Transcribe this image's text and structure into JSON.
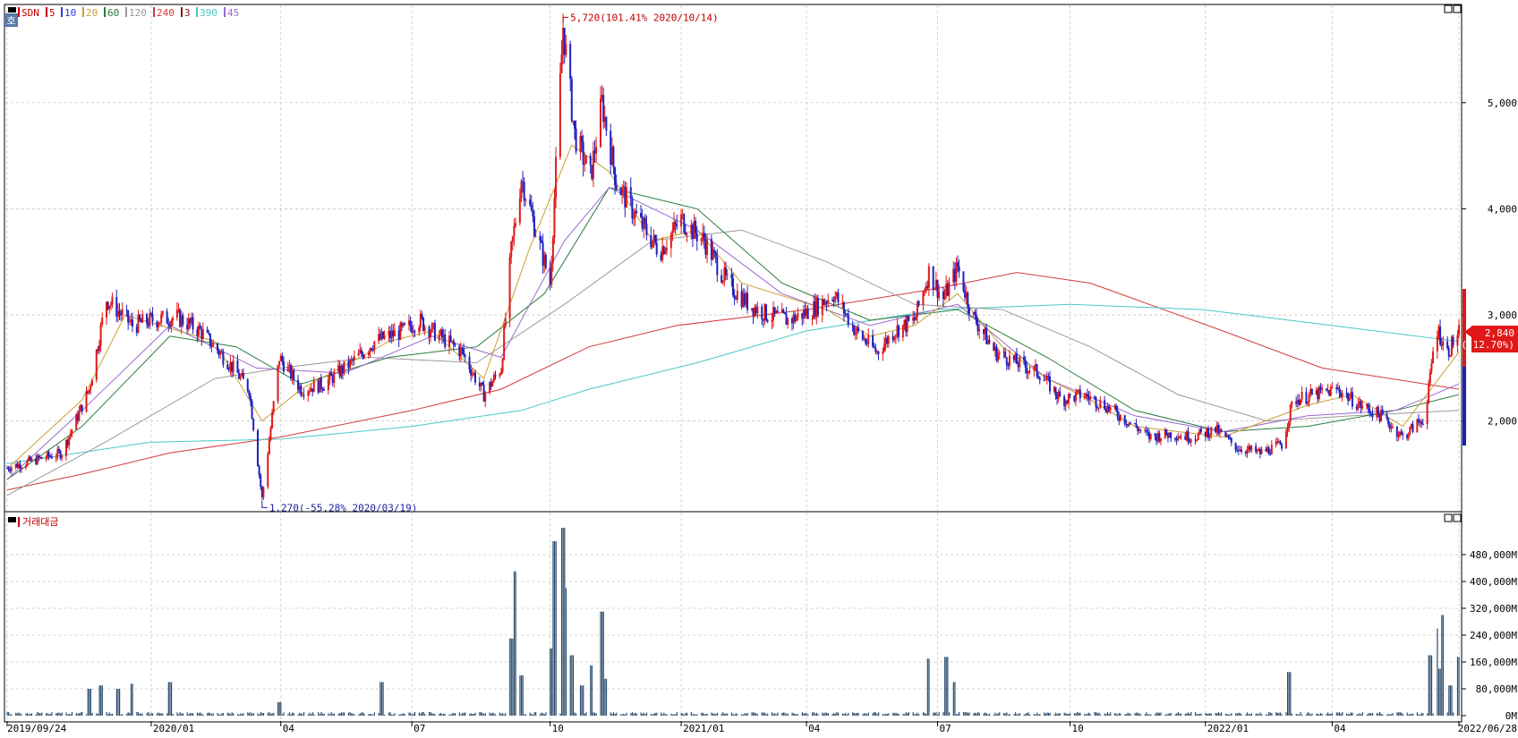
{
  "chart_data": [
    {
      "type": "candlestick",
      "panel": "price",
      "symbol": "SDN",
      "legend": [
        {
          "label": "SDN",
          "color": "#c00000"
        },
        {
          "label": "5",
          "color": "#c00000"
        },
        {
          "label": "10",
          "color": "#2a3ad0"
        },
        {
          "label": "20",
          "color": "#c8a030"
        },
        {
          "label": "60",
          "color": "#2a7a3a"
        },
        {
          "label": "120",
          "color": "#9a9a9a"
        },
        {
          "label": "240",
          "color": "#d23a3a"
        },
        {
          "label": "3",
          "color": "#8a1818"
        },
        {
          "label": "390",
          "color": "#4ac8c8"
        },
        {
          "label": "45",
          "color": "#9a6ad0"
        }
      ],
      "x_range": [
        "2019-09-24",
        "2022-06-28"
      ],
      "x_ticks": [
        {
          "date": "2019-09-24",
          "label": "2019/09/24"
        },
        {
          "date": "2020-01-02",
          "label": "2020/01"
        },
        {
          "date": "2020-04-01",
          "label": "04"
        },
        {
          "date": "2020-07-01",
          "label": "07"
        },
        {
          "date": "2020-10-05",
          "label": "10"
        },
        {
          "date": "2021-01-04",
          "label": "2021/01"
        },
        {
          "date": "2021-04-01",
          "label": "04"
        },
        {
          "date": "2021-07-01",
          "label": "07"
        },
        {
          "date": "2021-10-01",
          "label": "10"
        },
        {
          "date": "2022-01-03",
          "label": "2022/01"
        },
        {
          "date": "2022-04-01",
          "label": "04"
        },
        {
          "date": "2022-06-28",
          "label": "2022/06/28"
        }
      ],
      "ylim": [
        1180,
        5900
      ],
      "y_ticks": [
        {
          "value": 2000,
          "label": "2,000"
        },
        {
          "value": 3000,
          "label": "3,000"
        },
        {
          "value": 4000,
          "label": "4,000"
        },
        {
          "value": 5000,
          "label": "5,000"
        }
      ],
      "close_series": [
        [
          "2019-09-24",
          1560
        ],
        [
          "2019-10-10",
          1620
        ],
        [
          "2019-11-01",
          1700
        ],
        [
          "2019-11-20",
          2300
        ],
        [
          "2019-12-02",
          3150
        ],
        [
          "2019-12-20",
          2900
        ],
        [
          "2020-01-02",
          2950
        ],
        [
          "2020-01-20",
          2980
        ],
        [
          "2020-02-05",
          2850
        ],
        [
          "2020-02-25",
          2550
        ],
        [
          "2020-03-10",
          2300
        ],
        [
          "2020-03-19",
          1270
        ],
        [
          "2020-03-31",
          2600
        ],
        [
          "2020-04-15",
          2300
        ],
        [
          "2020-05-01",
          2350
        ],
        [
          "2020-05-20",
          2550
        ],
        [
          "2020-06-05",
          2750
        ],
        [
          "2020-06-25",
          2850
        ],
        [
          "2020-07-06",
          2950
        ],
        [
          "2020-07-20",
          2800
        ],
        [
          "2020-08-05",
          2650
        ],
        [
          "2020-08-20",
          2250
        ],
        [
          "2020-09-01",
          2500
        ],
        [
          "2020-09-08",
          3600
        ],
        [
          "2020-09-15",
          4300
        ],
        [
          "2020-09-25",
          3800
        ],
        [
          "2020-10-05",
          3300
        ],
        [
          "2020-10-14",
          5720
        ],
        [
          "2020-10-22",
          4700
        ],
        [
          "2020-11-02",
          4300
        ],
        [
          "2020-11-10",
          5000
        ],
        [
          "2020-11-20",
          4250
        ],
        [
          "2020-12-05",
          3900
        ],
        [
          "2020-12-20",
          3600
        ],
        [
          "2021-01-04",
          3900
        ],
        [
          "2021-01-20",
          3700
        ],
        [
          "2021-02-05",
          3300
        ],
        [
          "2021-02-20",
          3100
        ],
        [
          "2021-03-05",
          3000
        ],
        [
          "2021-03-20",
          2950
        ],
        [
          "2021-04-05",
          3050
        ],
        [
          "2021-04-20",
          3200
        ],
        [
          "2021-05-05",
          2850
        ],
        [
          "2021-05-20",
          2650
        ],
        [
          "2021-06-01",
          2850
        ],
        [
          "2021-06-15",
          2950
        ],
        [
          "2021-06-25",
          3400
        ],
        [
          "2021-07-05",
          3150
        ],
        [
          "2021-07-15",
          3450
        ],
        [
          "2021-07-25",
          3000
        ],
        [
          "2021-08-10",
          2650
        ],
        [
          "2021-08-25",
          2550
        ],
        [
          "2021-09-10",
          2450
        ],
        [
          "2021-09-25",
          2200
        ],
        [
          "2021-10-10",
          2250
        ],
        [
          "2021-10-25",
          2150
        ],
        [
          "2021-11-10",
          2000
        ],
        [
          "2021-11-25",
          1850
        ],
        [
          "2021-12-10",
          1880
        ],
        [
          "2021-12-25",
          1850
        ],
        [
          "2022-01-10",
          1920
        ],
        [
          "2022-01-25",
          1750
        ],
        [
          "2022-02-10",
          1700
        ],
        [
          "2022-02-25",
          1780
        ],
        [
          "2022-03-05",
          2200
        ],
        [
          "2022-03-20",
          2250
        ],
        [
          "2022-04-05",
          2300
        ],
        [
          "2022-04-20",
          2150
        ],
        [
          "2022-05-05",
          2050
        ],
        [
          "2022-05-20",
          1850
        ],
        [
          "2022-06-05",
          2050
        ],
        [
          "2022-06-12",
          2900
        ],
        [
          "2022-06-20",
          2650
        ],
        [
          "2022-06-28",
          2840
        ]
      ],
      "moving_averages": [
        {
          "period": "240",
          "color": "#d23a3a",
          "points": [
            [
              "2019-09-24",
              1350
            ],
            [
              "2019-11-15",
              1500
            ],
            [
              "2020-01-15",
              1700
            ],
            [
              "2020-04-01",
              1850
            ],
            [
              "2020-07-01",
              2100
            ],
            [
              "2020-09-01",
              2300
            ],
            [
              "2020-11-01",
              2700
            ],
            [
              "2021-01-01",
              2900
            ],
            [
              "2021-04-01",
              3050
            ],
            [
              "2021-07-01",
              3250
            ],
            [
              "2021-08-25",
              3400
            ],
            [
              "2021-10-15",
              3300
            ],
            [
              "2022-01-15",
              2850
            ],
            [
              "2022-03-25",
              2500
            ],
            [
              "2022-06-28",
              2300
            ]
          ]
        },
        {
          "period": "390",
          "color": "#4ac8c8",
          "points": [
            [
              "2019-09-24",
              1600
            ],
            [
              "2020-01-01",
              1800
            ],
            [
              "2020-04-01",
              1830
            ],
            [
              "2020-07-01",
              1950
            ],
            [
              "2020-09-15",
              2100
            ],
            [
              "2020-11-01",
              2300
            ],
            [
              "2021-01-15",
              2550
            ],
            [
              "2021-04-01",
              2850
            ],
            [
              "2021-07-01",
              3050
            ],
            [
              "2021-10-01",
              3100
            ],
            [
              "2022-01-01",
              3050
            ],
            [
              "2022-04-01",
              2900
            ],
            [
              "2022-06-28",
              2750
            ]
          ]
        },
        {
          "period": "120",
          "color": "#9a9a9a",
          "points": [
            [
              "2019-09-24",
              1300
            ],
            [
              "2019-12-01",
              1800
            ],
            [
              "2020-02-15",
              2400
            ],
            [
              "2020-04-01",
              2500
            ],
            [
              "2020-06-01",
              2600
            ],
            [
              "2020-08-15",
              2550
            ],
            [
              "2020-10-15",
              3100
            ],
            [
              "2020-12-15",
              3700
            ],
            [
              "2021-02-15",
              3800
            ],
            [
              "2021-04-15",
              3500
            ],
            [
              "2021-06-15",
              3100
            ],
            [
              "2021-08-15",
              3050
            ],
            [
              "2021-10-15",
              2700
            ],
            [
              "2021-12-15",
              2250
            ],
            [
              "2022-02-15",
              2000
            ],
            [
              "2022-04-15",
              2050
            ],
            [
              "2022-06-28",
              2100
            ]
          ]
        },
        {
          "period": "60",
          "color": "#2a7a3a",
          "points": [
            [
              "2019-09-24",
              1450
            ],
            [
              "2019-11-15",
              1950
            ],
            [
              "2020-01-15",
              2800
            ],
            [
              "2020-03-01",
              2700
            ],
            [
              "2020-04-15",
              2350
            ],
            [
              "2020-06-15",
              2600
            ],
            [
              "2020-08-15",
              2700
            ],
            [
              "2020-10-01",
              3200
            ],
            [
              "2020-11-15",
              4200
            ],
            [
              "2021-01-15",
              4000
            ],
            [
              "2021-03-15",
              3300
            ],
            [
              "2021-05-15",
              2950
            ],
            [
              "2021-07-15",
              3050
            ],
            [
              "2021-09-15",
              2600
            ],
            [
              "2021-11-15",
              2100
            ],
            [
              "2022-01-15",
              1900
            ],
            [
              "2022-03-15",
              1950
            ],
            [
              "2022-05-15",
              2100
            ],
            [
              "2022-06-28",
              2250
            ]
          ]
        },
        {
          "period": "45",
          "color": "#9a6ad0",
          "points": [
            [
              "2019-09-24",
              1450
            ],
            [
              "2019-11-15",
              2100
            ],
            [
              "2020-01-15",
              2900
            ],
            [
              "2020-03-15",
              2500
            ],
            [
              "2020-05-15",
              2450
            ],
            [
              "2020-07-15",
              2800
            ],
            [
              "2020-09-01",
              2600
            ],
            [
              "2020-10-15",
              3700
            ],
            [
              "2020-11-15",
              4200
            ],
            [
              "2021-01-15",
              3800
            ],
            [
              "2021-03-15",
              3200
            ],
            [
              "2021-05-15",
              2900
            ],
            [
              "2021-07-15",
              3100
            ],
            [
              "2021-09-15",
              2400
            ],
            [
              "2021-11-15",
              2050
            ],
            [
              "2022-01-15",
              1900
            ],
            [
              "2022-03-15",
              2050
            ],
            [
              "2022-05-15",
              2100
            ],
            [
              "2022-06-28",
              2350
            ]
          ]
        },
        {
          "period": "20",
          "color": "#c8a030",
          "points": [
            [
              "2019-09-24",
              1550
            ],
            [
              "2019-11-15",
              2200
            ],
            [
              "2019-12-15",
              3000
            ],
            [
              "2020-02-15",
              2750
            ],
            [
              "2020-03-19",
              2000
            ],
            [
              "2020-04-15",
              2300
            ],
            [
              "2020-06-15",
              2750
            ],
            [
              "2020-07-15",
              2850
            ],
            [
              "2020-08-20",
              2400
            ],
            [
              "2020-09-20",
              3600
            ],
            [
              "2020-10-20",
              4600
            ],
            [
              "2020-11-15",
              4350
            ],
            [
              "2020-12-15",
              3700
            ],
            [
              "2021-01-15",
              3800
            ],
            [
              "2021-02-15",
              3300
            ],
            [
              "2021-04-15",
              3050
            ],
            [
              "2021-05-15",
              2800
            ],
            [
              "2021-06-15",
              2900
            ],
            [
              "2021-07-15",
              3200
            ],
            [
              "2021-08-15",
              2700
            ],
            [
              "2021-09-15",
              2400
            ],
            [
              "2021-10-15",
              2200
            ],
            [
              "2021-11-15",
              1950
            ],
            [
              "2022-01-15",
              1850
            ],
            [
              "2022-03-15",
              2150
            ],
            [
              "2022-04-15",
              2250
            ],
            [
              "2022-05-20",
              1950
            ],
            [
              "2022-06-28",
              2650
            ]
          ]
        }
      ],
      "annotations": [
        {
          "text": "5,720(101.41% 2020/10/14)",
          "date": "2020-10-14",
          "value": 5720,
          "kind": "high"
        },
        {
          "text": "1,270(-55.28% 2020/03/19)",
          "date": "2020-03-19",
          "value": 1270,
          "kind": "low"
        }
      ],
      "current_price": {
        "label": "2,840",
        "change": "( 12.70%)",
        "value": 2840
      }
    },
    {
      "type": "bar",
      "panel": "volume",
      "title": "거래대금",
      "ylim": [
        0,
        560
      ],
      "unit_suffix": "M",
      "y_ticks": [
        {
          "value": 0,
          "label": "0M"
        },
        {
          "value": 80,
          "label": "80,000M"
        },
        {
          "value": 160,
          "label": "160,000M"
        },
        {
          "value": 240,
          "label": "240,000M"
        },
        {
          "value": 320,
          "label": "320,000M"
        },
        {
          "value": 400,
          "label": "400,000M"
        },
        {
          "value": 480,
          "label": "480,000M"
        }
      ],
      "spikes": [
        [
          "2019-11-20",
          80
        ],
        [
          "2019-11-28",
          90
        ],
        [
          "2019-12-10",
          80
        ],
        [
          "2019-12-20",
          95
        ],
        [
          "2020-01-15",
          100
        ],
        [
          "2020-03-31",
          40
        ],
        [
          "2020-06-10",
          100
        ],
        [
          "2020-09-08",
          230
        ],
        [
          "2020-09-11",
          430
        ],
        [
          "2020-09-15",
          120
        ],
        [
          "2020-10-05",
          200
        ],
        [
          "2020-10-08",
          520
        ],
        [
          "2020-10-14",
          560
        ],
        [
          "2020-10-16",
          380
        ],
        [
          "2020-10-20",
          180
        ],
        [
          "2020-10-27",
          90
        ],
        [
          "2020-11-02",
          150
        ],
        [
          "2020-11-10",
          310
        ],
        [
          "2020-11-12",
          110
        ],
        [
          "2021-06-25",
          170
        ],
        [
          "2021-07-07",
          175
        ],
        [
          "2021-07-12",
          100
        ],
        [
          "2022-03-02",
          130
        ],
        [
          "2022-06-08",
          180
        ],
        [
          "2022-06-12",
          260
        ],
        [
          "2022-06-15",
          140
        ],
        [
          "2022-06-17",
          300
        ],
        [
          "2022-06-22",
          90
        ],
        [
          "2022-06-28",
          175
        ]
      ]
    }
  ],
  "ui": {
    "price_badge": "호",
    "high_label": "5,720(101.41% 2020/10/14)",
    "low_label": "1,270(-55.28% 2020/03/19)",
    "current_label": "2,840",
    "current_change": "( 12.70%)",
    "volume_title": "거래대금",
    "colors": {
      "up": "#e01818",
      "down": "#2020c0",
      "grid": "#c8c8c8",
      "volume": "#2a4a6a",
      "frame": "#000000"
    }
  }
}
